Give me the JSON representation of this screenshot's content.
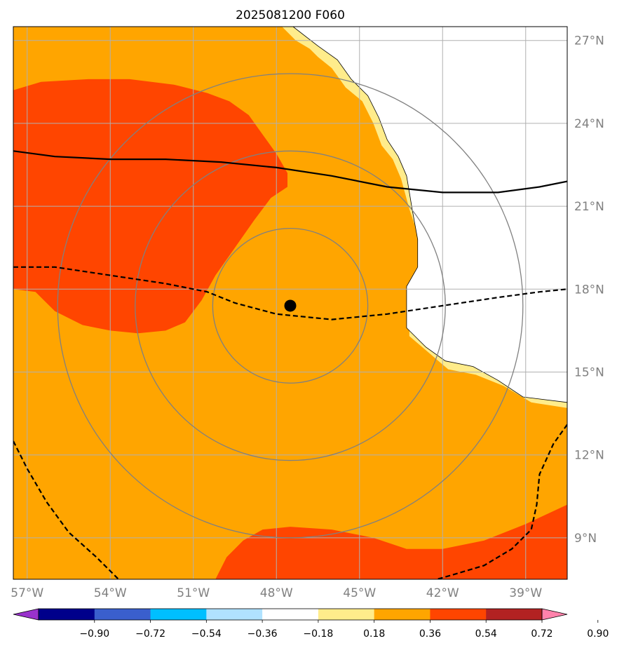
{
  "title": "2025081200 F060",
  "colors": {
    "land": "#ffffff",
    "coastline": "#000000",
    "gridline": "#b0b0b0",
    "range_ring": "#808080",
    "storm_center": "#000000"
  },
  "map": {
    "projection": "PlateCarree",
    "lon_range": [
      -57.5,
      -37.5
    ],
    "lat_range": [
      7.5,
      27.5
    ],
    "lon_ticks": [
      {
        "value": -57,
        "label": "57°W"
      },
      {
        "value": -54,
        "label": "54°W"
      },
      {
        "value": -51,
        "label": "51°W"
      },
      {
        "value": -48,
        "label": "48°W"
      },
      {
        "value": -45,
        "label": "45°W"
      },
      {
        "value": -42,
        "label": "42°W"
      },
      {
        "value": -39,
        "label": "39°W"
      }
    ],
    "lat_ticks": [
      {
        "value": 27,
        "label": "27°N"
      },
      {
        "value": 24,
        "label": "24°N"
      },
      {
        "value": 21,
        "label": "21°N"
      },
      {
        "value": 18,
        "label": "18°N"
      },
      {
        "value": 15,
        "label": "15°N"
      },
      {
        "value": 12,
        "label": "12°N"
      },
      {
        "value": 9,
        "label": "9°N"
      }
    ],
    "storm_center": {
      "lon": -47.5,
      "lat": 17.4
    },
    "range_rings_deg": [
      2.8,
      5.6,
      8.4
    ],
    "ring_centers": [
      {
        "lon": -47.5,
        "lat": 17.4
      },
      {
        "lon": -47.5,
        "lat": 17.4
      },
      {
        "lon": -47.5,
        "lat": 17.4
      }
    ]
  },
  "colorbar": {
    "bins": [
      {
        "color": "#9932cc"
      },
      {
        "color": "#00008b"
      },
      {
        "color": "#3a5fcd"
      },
      {
        "color": "#00bfff"
      },
      {
        "color": "#b0e2ff"
      },
      {
        "color": "#ffffff"
      },
      {
        "color": "#ffec8b"
      },
      {
        "color": "#ffa500"
      },
      {
        "color": "#ff4500"
      },
      {
        "color": "#b22222"
      },
      {
        "color": "#ff82ab"
      }
    ],
    "tick_labels": [
      "−0.90",
      "−0.72",
      "−0.54",
      "−0.36",
      "−0.18",
      "0.18",
      "0.36",
      "0.54",
      "0.72",
      "0.90"
    ],
    "extend": "both"
  },
  "chart_data": {
    "type": "heatmap",
    "title": "2025081200 F060",
    "xlabel": "",
    "ylabel": "",
    "xlim": [
      -57.5,
      -37.5
    ],
    "ylim": [
      7.5,
      27.5
    ],
    "levels": [
      -0.9,
      -0.72,
      -0.54,
      -0.36,
      -0.18,
      0.18,
      0.36,
      0.54,
      0.72,
      0.9
    ],
    "background_level_color": "#ffa500",
    "regions": [
      {
        "level": "0.18-0.36",
        "color": "#ffec8b",
        "outline": [
          [
            -47.8,
            27.5
          ],
          [
            -47.3,
            27.0
          ],
          [
            -46.8,
            26.7
          ],
          [
            -46.5,
            26.4
          ],
          [
            -46.0,
            26.0
          ],
          [
            -45.5,
            25.3
          ],
          [
            -44.9,
            24.8
          ],
          [
            -44.5,
            24.0
          ],
          [
            -44.2,
            23.2
          ],
          [
            -43.8,
            22.7
          ],
          [
            -43.5,
            22.0
          ],
          [
            -43.2,
            20.9
          ],
          [
            -42.8,
            19.7
          ],
          [
            -42.7,
            18.7
          ],
          [
            -43.2,
            17.7
          ],
          [
            -43.2,
            16.3
          ],
          [
            -42.5,
            15.7
          ],
          [
            -41.8,
            15.1
          ],
          [
            -40.8,
            14.9
          ],
          [
            -39.8,
            14.5
          ],
          [
            -38.8,
            13.9
          ],
          [
            -37.5,
            13.7
          ],
          [
            -37.5,
            27.5
          ]
        ]
      },
      {
        "level": "land",
        "color": "#ffffff",
        "outline": [
          [
            -47.4,
            27.5
          ],
          [
            -46.5,
            26.8
          ],
          [
            -45.8,
            26.3
          ],
          [
            -45.3,
            25.6
          ],
          [
            -44.7,
            25.0
          ],
          [
            -44.3,
            24.2
          ],
          [
            -44.0,
            23.4
          ],
          [
            -43.6,
            22.8
          ],
          [
            -43.3,
            22.1
          ],
          [
            -43.1,
            20.9
          ],
          [
            -42.9,
            19.8
          ],
          [
            -42.9,
            18.8
          ],
          [
            -43.3,
            18.1
          ],
          [
            -43.3,
            16.6
          ],
          [
            -42.6,
            15.9
          ],
          [
            -41.9,
            15.4
          ],
          [
            -40.9,
            15.2
          ],
          [
            -40.0,
            14.7
          ],
          [
            -39.1,
            14.1
          ],
          [
            -37.5,
            13.9
          ],
          [
            -37.5,
            27.5
          ]
        ]
      },
      {
        "level": "0.54-0.72",
        "color": "#ff4500",
        "outline": [
          [
            -57.5,
            25.2
          ],
          [
            -56.5,
            25.5
          ],
          [
            -54.8,
            25.6
          ],
          [
            -53.3,
            25.6
          ],
          [
            -51.7,
            25.4
          ],
          [
            -50.5,
            25.1
          ],
          [
            -49.7,
            24.8
          ],
          [
            -49.0,
            24.3
          ],
          [
            -48.5,
            23.6
          ],
          [
            -48.0,
            22.9
          ],
          [
            -47.6,
            22.2
          ],
          [
            -47.6,
            21.7
          ],
          [
            -48.2,
            21.3
          ],
          [
            -48.8,
            20.5
          ],
          [
            -49.5,
            19.5
          ],
          [
            -50.2,
            18.5
          ],
          [
            -50.7,
            17.6
          ],
          [
            -51.3,
            16.8
          ],
          [
            -52.0,
            16.5
          ],
          [
            -53.0,
            16.4
          ],
          [
            -54.0,
            16.5
          ],
          [
            -55.0,
            16.7
          ],
          [
            -56.0,
            17.2
          ],
          [
            -56.7,
            17.9
          ],
          [
            -57.5,
            18.0
          ]
        ]
      },
      {
        "level": "0.54-0.72",
        "color": "#ff4500",
        "outline": [
          [
            -50.2,
            7.5
          ],
          [
            -49.8,
            8.3
          ],
          [
            -49.2,
            8.9
          ],
          [
            -48.5,
            9.3
          ],
          [
            -47.5,
            9.4
          ],
          [
            -46.0,
            9.3
          ],
          [
            -44.5,
            9.0
          ],
          [
            -43.3,
            8.6
          ],
          [
            -42.0,
            8.6
          ],
          [
            -40.5,
            8.9
          ],
          [
            -39.0,
            9.5
          ],
          [
            -37.5,
            10.2
          ],
          [
            -37.5,
            7.5
          ]
        ]
      }
    ],
    "contours": [
      {
        "style": "solid",
        "points": [
          [
            -57.5,
            23.0
          ],
          [
            -56.0,
            22.8
          ],
          [
            -54.0,
            22.7
          ],
          [
            -52.0,
            22.7
          ],
          [
            -50.0,
            22.6
          ],
          [
            -48.0,
            22.4
          ],
          [
            -46.0,
            22.1
          ],
          [
            -44.0,
            21.7
          ],
          [
            -42.0,
            21.5
          ],
          [
            -40.0,
            21.5
          ],
          [
            -38.5,
            21.7
          ],
          [
            -37.5,
            21.9
          ]
        ]
      },
      {
        "style": "dashed",
        "points": [
          [
            -57.5,
            18.8
          ],
          [
            -56.0,
            18.8
          ],
          [
            -54.0,
            18.5
          ],
          [
            -52.0,
            18.2
          ],
          [
            -50.5,
            17.9
          ],
          [
            -49.5,
            17.5
          ],
          [
            -48.0,
            17.1
          ],
          [
            -46.0,
            16.9
          ],
          [
            -44.0,
            17.1
          ],
          [
            -42.0,
            17.4
          ],
          [
            -40.0,
            17.7
          ],
          [
            -38.5,
            17.9
          ],
          [
            -37.5,
            18.0
          ]
        ]
      },
      {
        "style": "dashed",
        "points": [
          [
            -57.5,
            12.5
          ],
          [
            -57.0,
            11.5
          ],
          [
            -56.3,
            10.3
          ],
          [
            -55.5,
            9.2
          ],
          [
            -54.5,
            8.3
          ],
          [
            -53.7,
            7.5
          ]
        ]
      },
      {
        "style": "dashed",
        "points": [
          [
            -37.5,
            13.1
          ],
          [
            -38.0,
            12.4
          ],
          [
            -38.5,
            11.3
          ],
          [
            -38.6,
            10.2
          ],
          [
            -38.8,
            9.3
          ],
          [
            -39.5,
            8.6
          ],
          [
            -40.5,
            8.0
          ],
          [
            -41.5,
            7.7
          ],
          [
            -42.2,
            7.5
          ]
        ]
      }
    ]
  }
}
